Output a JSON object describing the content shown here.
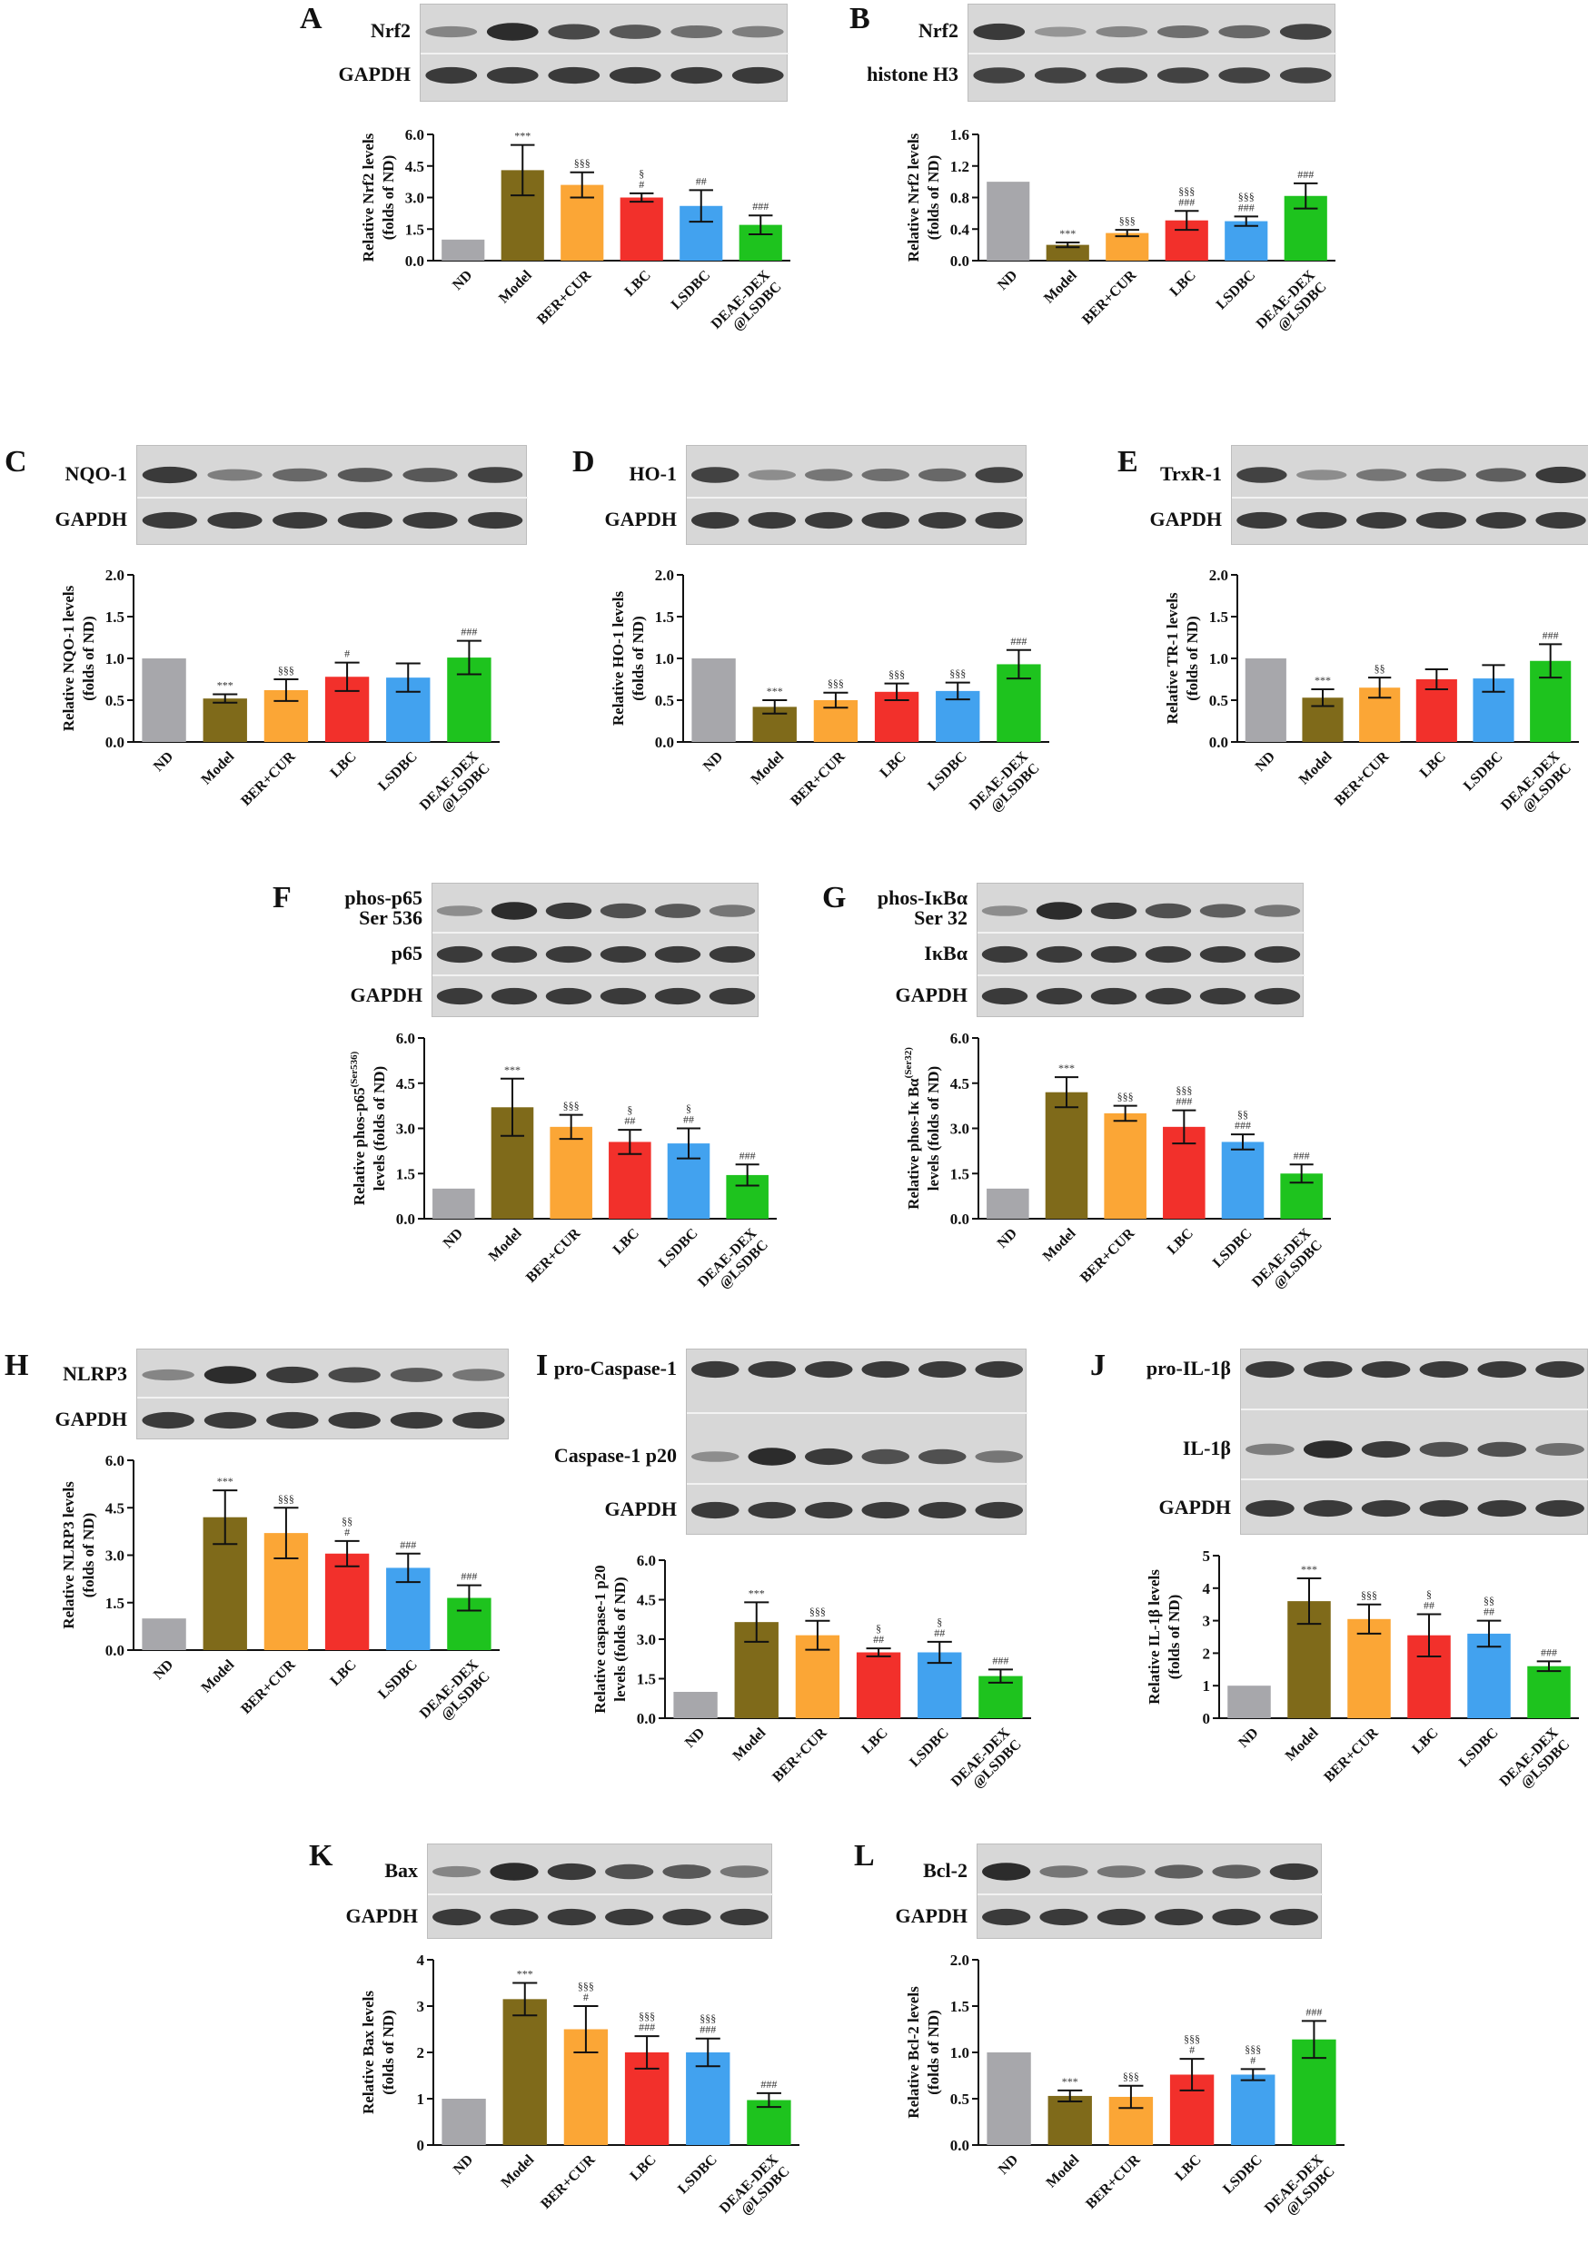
{
  "figure": {
    "group_colors": [
      "#a7a7ab",
      "#7f6a1a",
      "#fba636",
      "#f2302b",
      "#42a2ef",
      "#1ec31e"
    ],
    "groups": [
      "ND",
      "Model",
      "BER+CUR",
      "LBC",
      "LSDBC",
      "DEAE-DEX @LSDBC"
    ],
    "groups_alt": [
      "ND",
      "Model",
      "BER+CUR",
      "LBC",
      "LSDBC",
      "DEAE-DEX @LSDBC"
    ]
  },
  "panels": [
    {
      "letter": "A",
      "blot_labels": [
        "Nrf2",
        "GAPDH"
      ],
      "intensities": [
        [
          0.35,
          0.95,
          0.75,
          0.65,
          0.5,
          0.4
        ],
        [
          0.85,
          0.85,
          0.85,
          0.85,
          0.85,
          0.85
        ]
      ]
    },
    {
      "letter": "B",
      "blot_labels": [
        "Nrf2",
        "histone H3"
      ],
      "intensities": [
        [
          0.85,
          0.25,
          0.35,
          0.5,
          0.55,
          0.8
        ],
        [
          0.8,
          0.8,
          0.8,
          0.8,
          0.8,
          0.8
        ]
      ]
    },
    {
      "letter": "C",
      "blot_labels": [
        "NQO-1",
        "GAPDH"
      ],
      "intensities": [
        [
          0.85,
          0.4,
          0.55,
          0.65,
          0.65,
          0.8
        ],
        [
          0.85,
          0.85,
          0.85,
          0.85,
          0.85,
          0.85
        ]
      ]
    },
    {
      "letter": "D",
      "blot_labels": [
        "HO-1",
        "GAPDH"
      ],
      "intensities": [
        [
          0.8,
          0.3,
          0.45,
          0.5,
          0.55,
          0.8
        ],
        [
          0.85,
          0.85,
          0.85,
          0.85,
          0.85,
          0.85
        ]
      ]
    },
    {
      "letter": "E",
      "blot_labels": [
        "TrxR-1",
        "GAPDH"
      ],
      "intensities": [
        [
          0.8,
          0.3,
          0.45,
          0.55,
          0.6,
          0.85
        ],
        [
          0.85,
          0.85,
          0.85,
          0.85,
          0.85,
          0.85
        ]
      ]
    },
    {
      "letter": "F",
      "blot_labels": [
        "phos-p65 Ser 536",
        "p65",
        "GAPDH"
      ],
      "intensities": [
        [
          0.3,
          0.95,
          0.85,
          0.7,
          0.65,
          0.45
        ],
        [
          0.85,
          0.85,
          0.85,
          0.85,
          0.85,
          0.85
        ],
        [
          0.85,
          0.85,
          0.85,
          0.85,
          0.85,
          0.85
        ]
      ]
    },
    {
      "letter": "G",
      "blot_labels": [
        "phos-IκBα Ser 32",
        "IκBα",
        "GAPDH"
      ],
      "intensities": [
        [
          0.3,
          0.95,
          0.85,
          0.7,
          0.6,
          0.45
        ],
        [
          0.85,
          0.85,
          0.85,
          0.85,
          0.85,
          0.85
        ],
        [
          0.85,
          0.85,
          0.85,
          0.85,
          0.85,
          0.85
        ]
      ]
    },
    {
      "letter": "H",
      "blot_labels": [
        "NLRP3",
        "GAPDH"
      ],
      "intensities": [
        [
          0.35,
          0.95,
          0.85,
          0.75,
          0.65,
          0.45
        ],
        [
          0.85,
          0.85,
          0.85,
          0.85,
          0.85,
          0.85
        ]
      ]
    },
    {
      "letter": "I",
      "blot_labels": [
        "pro-Caspase-1",
        "Caspase-1 p20",
        "GAPDH"
      ],
      "intensities": [
        [
          0.85,
          0.85,
          0.85,
          0.85,
          0.85,
          0.85
        ],
        [
          0.3,
          0.95,
          0.85,
          0.7,
          0.7,
          0.45
        ],
        [
          0.85,
          0.85,
          0.85,
          0.85,
          0.85,
          0.85
        ]
      ]
    },
    {
      "letter": "J",
      "blot_labels": [
        "pro-IL-1β",
        "IL-1β",
        "GAPDH"
      ],
      "intensities": [
        [
          0.85,
          0.85,
          0.85,
          0.85,
          0.85,
          0.85
        ],
        [
          0.4,
          0.95,
          0.85,
          0.7,
          0.7,
          0.5
        ],
        [
          0.85,
          0.85,
          0.85,
          0.85,
          0.85,
          0.85
        ]
      ]
    },
    {
      "letter": "K",
      "blot_labels": [
        "Bax",
        "GAPDH"
      ],
      "intensities": [
        [
          0.35,
          0.95,
          0.85,
          0.7,
          0.65,
          0.45
        ],
        [
          0.85,
          0.85,
          0.85,
          0.85,
          0.85,
          0.85
        ]
      ]
    },
    {
      "letter": "L",
      "blot_labels": [
        "Bcl-2",
        "GAPDH"
      ],
      "intensities": [
        [
          0.95,
          0.45,
          0.45,
          0.6,
          0.6,
          0.85
        ],
        [
          0.85,
          0.85,
          0.85,
          0.85,
          0.85,
          0.85
        ]
      ]
    }
  ],
  "chart_data": [
    {
      "panel": "A",
      "type": "bar",
      "ylabel": [
        "Relative Nrf2 levels",
        "(folds of ND)"
      ],
      "ylim": [
        0,
        6
      ],
      "yticks": [
        "0.0",
        "1.5",
        "3.0",
        "4.5",
        "6.0"
      ],
      "ytick_values": [
        0,
        1.5,
        3,
        4.5,
        6
      ],
      "categories": [
        "ND",
        "Model",
        "BER+CUR",
        "LBC",
        "LSDBC",
        "DEAE-DEX @LSDBC"
      ],
      "values": [
        1.0,
        4.3,
        3.6,
        3.0,
        2.6,
        1.7
      ],
      "errors": [
        0,
        1.2,
        0.6,
        0.2,
        0.75,
        0.45
      ],
      "annotations": [
        [],
        [
          "***"
        ],
        [
          "§§§"
        ],
        [
          "§",
          "#"
        ],
        [
          "##"
        ],
        [
          "###"
        ]
      ]
    },
    {
      "panel": "B",
      "type": "bar",
      "ylabel": [
        "Relative Nrf2 levels",
        "(folds of ND)"
      ],
      "ylim": [
        0,
        1.6
      ],
      "yticks": [
        "0.0",
        "0.4",
        "0.8",
        "1.2",
        "1.6"
      ],
      "ytick_values": [
        0,
        0.4,
        0.8,
        1.2,
        1.6
      ],
      "categories": [
        "ND",
        "Model",
        "BER+CUR",
        "LBC",
        "LSDBC",
        "DEAE-DEX @LSDBC"
      ],
      "values": [
        1.0,
        0.2,
        0.35,
        0.51,
        0.5,
        0.82
      ],
      "errors": [
        0,
        0.03,
        0.04,
        0.12,
        0.06,
        0.16
      ],
      "annotations": [
        [],
        [
          "***"
        ],
        [
          "§§§"
        ],
        [
          "§§§",
          "###"
        ],
        [
          "§§§",
          "###"
        ],
        [
          "###"
        ]
      ]
    },
    {
      "panel": "C",
      "type": "bar",
      "ylabel": [
        "Relative NQO-1 levels",
        "(folds of ND)"
      ],
      "ylim": [
        0,
        2
      ],
      "yticks": [
        "0.0",
        "0.5",
        "1.0",
        "1.5",
        "2.0"
      ],
      "ytick_values": [
        0,
        0.5,
        1,
        1.5,
        2
      ],
      "categories": [
        "ND",
        "Model",
        "BER+CUR",
        "LBC",
        "LSDBC",
        "DEAE-DEX @LSDBC"
      ],
      "values": [
        1.0,
        0.52,
        0.62,
        0.78,
        0.77,
        1.01
      ],
      "errors": [
        0,
        0.05,
        0.13,
        0.17,
        0.17,
        0.2
      ],
      "annotations": [
        [],
        [
          "***"
        ],
        [
          "§§§"
        ],
        [
          "#"
        ],
        [],
        [
          "###"
        ]
      ]
    },
    {
      "panel": "D",
      "type": "bar",
      "ylabel": [
        "Relative HO-1 levels",
        "(folds of ND)"
      ],
      "ylim": [
        0,
        2
      ],
      "yticks": [
        "0.0",
        "0.5",
        "1.0",
        "1.5",
        "2.0"
      ],
      "ytick_values": [
        0,
        0.5,
        1,
        1.5,
        2
      ],
      "categories": [
        "ND",
        "Model",
        "BER+CUR",
        "LBC",
        "LSDBC",
        "DEAE-DEX @LSDBC"
      ],
      "values": [
        1.0,
        0.42,
        0.5,
        0.6,
        0.61,
        0.93
      ],
      "errors": [
        0,
        0.08,
        0.09,
        0.1,
        0.1,
        0.17
      ],
      "annotations": [
        [],
        [
          "***"
        ],
        [
          "§§§"
        ],
        [
          "§§§"
        ],
        [
          "§§§"
        ],
        [
          "###"
        ]
      ]
    },
    {
      "panel": "E",
      "type": "bar",
      "ylabel": [
        "Relative TR-1 levels",
        "(folds of ND)"
      ],
      "ylim": [
        0,
        2
      ],
      "yticks": [
        "0.0",
        "0.5",
        "1.0",
        "1.5",
        "2.0"
      ],
      "ytick_values": [
        0,
        0.5,
        1,
        1.5,
        2
      ],
      "categories": [
        "ND",
        "Model",
        "BER+CUR",
        "LBC",
        "LSDBC",
        "DEAE-DEX @LSDBC"
      ],
      "values": [
        1.0,
        0.53,
        0.65,
        0.75,
        0.76,
        0.97
      ],
      "errors": [
        0,
        0.1,
        0.12,
        0.12,
        0.16,
        0.2
      ],
      "annotations": [
        [],
        [
          "***"
        ],
        [
          "§§"
        ],
        [],
        [],
        [
          "###"
        ]
      ]
    },
    {
      "panel": "F",
      "type": "bar",
      "ylabel": [
        "Relative phos-p65",
        "levels (folds of ND)"
      ],
      "ylabel_sup": "(Ser536)",
      "ylim": [
        0,
        6
      ],
      "yticks": [
        "0.0",
        "1.5",
        "3.0",
        "4.5",
        "6.0"
      ],
      "ytick_values": [
        0,
        1.5,
        3,
        4.5,
        6
      ],
      "categories": [
        "ND",
        "Model",
        "BER+CUR",
        "LBC",
        "LSDBC",
        "DEAE-DEX @LSDBC"
      ],
      "values": [
        1.0,
        3.7,
        3.05,
        2.55,
        2.5,
        1.45
      ],
      "errors": [
        0,
        0.95,
        0.4,
        0.4,
        0.5,
        0.35
      ],
      "annotations": [
        [],
        [
          "***"
        ],
        [
          "§§§"
        ],
        [
          "§",
          "##"
        ],
        [
          "§",
          "##"
        ],
        [
          "###"
        ]
      ]
    },
    {
      "panel": "G",
      "type": "bar",
      "ylabel": [
        "Relative phos-Iκ Bα",
        "levels (folds of ND)"
      ],
      "ylabel_sup": "(Ser32)",
      "ylim": [
        0,
        6
      ],
      "yticks": [
        "0.0",
        "1.5",
        "3.0",
        "4.5",
        "6.0"
      ],
      "ytick_values": [
        0,
        1.5,
        3,
        4.5,
        6
      ],
      "categories": [
        "ND",
        "Model",
        "BER+CUR",
        "LBC",
        "LSDBC",
        "DEAE-DEX @LSDBC"
      ],
      "values": [
        1.0,
        4.2,
        3.5,
        3.05,
        2.55,
        1.5
      ],
      "errors": [
        0,
        0.5,
        0.25,
        0.55,
        0.25,
        0.3
      ],
      "annotations": [
        [],
        [
          "***"
        ],
        [
          "§§§"
        ],
        [
          "§§§",
          "###"
        ],
        [
          "§§",
          "###"
        ],
        [
          "###"
        ]
      ]
    },
    {
      "panel": "H",
      "type": "bar",
      "ylabel": [
        "Relative NLRP3 levels",
        "(folds of ND)"
      ],
      "ylim": [
        0,
        6
      ],
      "yticks": [
        "0.0",
        "1.5",
        "3.0",
        "4.5",
        "6.0"
      ],
      "ytick_values": [
        0,
        1.5,
        3,
        4.5,
        6
      ],
      "categories": [
        "ND",
        "Model",
        "BER+CUR",
        "LBC",
        "LSDBC",
        "DEAE-DEX @LSDBC"
      ],
      "values": [
        1.0,
        4.2,
        3.7,
        3.05,
        2.6,
        1.65
      ],
      "errors": [
        0,
        0.85,
        0.8,
        0.4,
        0.45,
        0.4
      ],
      "annotations": [
        [],
        [
          "***"
        ],
        [
          "§§§"
        ],
        [
          "§§",
          "#"
        ],
        [
          "###"
        ],
        [
          "###"
        ]
      ]
    },
    {
      "panel": "I",
      "type": "bar",
      "ylabel": [
        "Relative caspase-1 p20",
        "levels (folds of ND)"
      ],
      "ylim": [
        0,
        6
      ],
      "yticks": [
        "0.0",
        "1.5",
        "3.0",
        "4.5",
        "6.0"
      ],
      "ytick_values": [
        0,
        1.5,
        3,
        4.5,
        6
      ],
      "categories": [
        "ND",
        "Model",
        "BER+CUR",
        "LBC",
        "LSDBC",
        "DEAE-DEX @LSDBC"
      ],
      "values": [
        1.0,
        3.65,
        3.15,
        2.5,
        2.5,
        1.6
      ],
      "errors": [
        0,
        0.75,
        0.55,
        0.15,
        0.4,
        0.25
      ],
      "annotations": [
        [],
        [
          "***"
        ],
        [
          "§§§"
        ],
        [
          "§",
          "##"
        ],
        [
          "§",
          "##"
        ],
        [
          "###"
        ]
      ]
    },
    {
      "panel": "J",
      "type": "bar",
      "ylabel": [
        "Relative IL-1β levels",
        "(folds of ND)"
      ],
      "ylim": [
        0,
        5
      ],
      "yticks": [
        "0",
        "1",
        "2",
        "3",
        "4",
        "5"
      ],
      "ytick_values": [
        0,
        1,
        2,
        3,
        4,
        5
      ],
      "categories": [
        "ND",
        "Model",
        "BER+CUR",
        "LBC",
        "LSDBC",
        "DEAE-DEX @LSDBC"
      ],
      "values": [
        1.0,
        3.6,
        3.05,
        2.55,
        2.6,
        1.6
      ],
      "errors": [
        0,
        0.7,
        0.45,
        0.65,
        0.4,
        0.15
      ],
      "annotations": [
        [],
        [
          "***"
        ],
        [
          "§§§"
        ],
        [
          "§",
          "##"
        ],
        [
          "§§",
          "##"
        ],
        [
          "###"
        ]
      ]
    },
    {
      "panel": "K",
      "type": "bar",
      "ylabel": [
        "Relative Bax levels",
        "(folds of ND)"
      ],
      "ylim": [
        0,
        4
      ],
      "yticks": [
        "0",
        "1",
        "2",
        "3",
        "4"
      ],
      "ytick_values": [
        0,
        1,
        2,
        3,
        4
      ],
      "categories": [
        "ND",
        "Model",
        "BER+CUR",
        "LBC",
        "LSDBC",
        "DEAE-DEX @LSDBC"
      ],
      "values": [
        1.0,
        3.15,
        2.5,
        2.0,
        2.0,
        0.97
      ],
      "errors": [
        0,
        0.35,
        0.5,
        0.35,
        0.3,
        0.15
      ],
      "annotations": [
        [],
        [
          "***"
        ],
        [
          "§§§",
          "#"
        ],
        [
          "§§§",
          "###"
        ],
        [
          "§§§",
          "###"
        ],
        [
          "###"
        ]
      ]
    },
    {
      "panel": "L",
      "type": "bar",
      "ylabel": [
        "Relative Bcl-2 levels",
        "(folds of ND)"
      ],
      "ylim": [
        0,
        2
      ],
      "yticks": [
        "0.0",
        "0.5",
        "1.0",
        "1.5",
        "2.0"
      ],
      "ytick_values": [
        0,
        0.5,
        1,
        1.5,
        2
      ],
      "categories": [
        "ND",
        "Model",
        "BER+CUR",
        "LBC",
        "LSDBC",
        "DEAE-DEX @LSDBC"
      ],
      "values": [
        1.0,
        0.53,
        0.52,
        0.76,
        0.76,
        1.14
      ],
      "errors": [
        0,
        0.06,
        0.12,
        0.17,
        0.06,
        0.2
      ],
      "annotations": [
        [],
        [
          "***"
        ],
        [
          "§§§"
        ],
        [
          "§§§",
          "#"
        ],
        [
          "§§§",
          "#"
        ],
        [
          "###"
        ]
      ]
    }
  ]
}
